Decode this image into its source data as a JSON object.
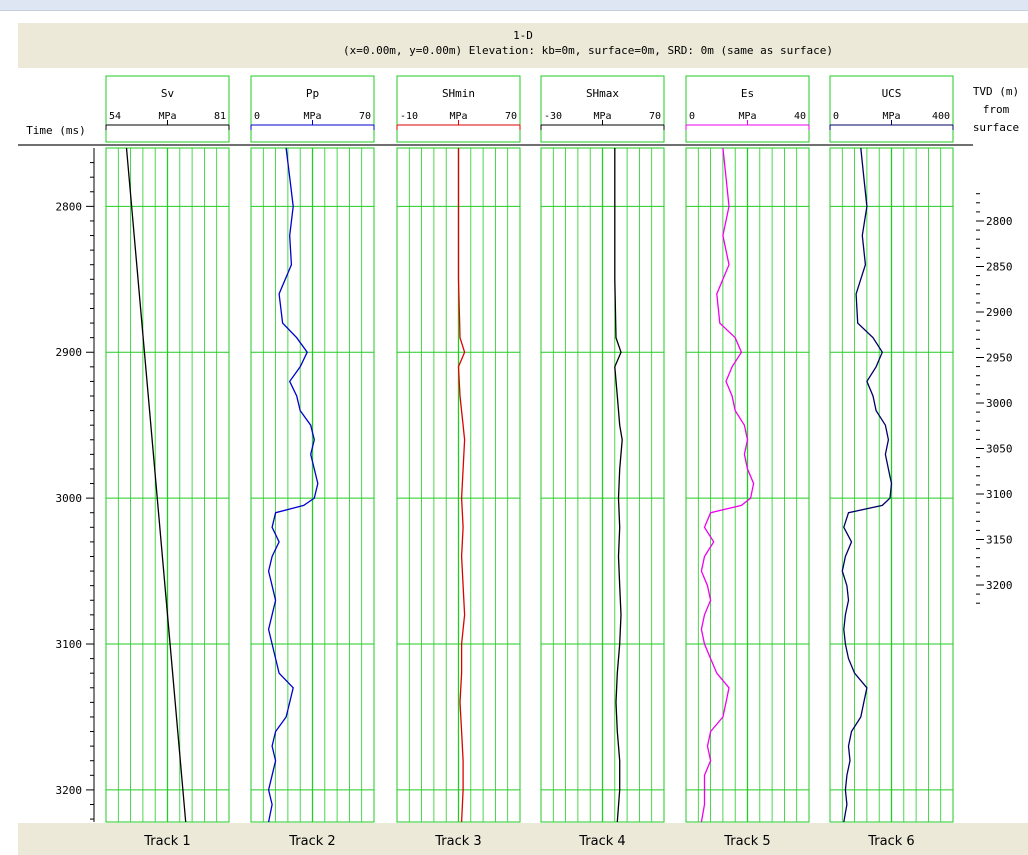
{
  "window": {
    "title_line1": "1-D",
    "title_line2": "(x=0.00m, y=0.00m) Elevation: kb=0m, surface=0m, SRD: 0m (same as surface)"
  },
  "chart_data": {
    "type": "line",
    "y_axis_left": {
      "label": "Time (ms)",
      "ticks": [
        2800,
        2900,
        3000,
        3100,
        3200
      ],
      "range": [
        2760,
        3222
      ]
    },
    "y_axis_right": {
      "label_lines": [
        "TVD (m)",
        "from",
        "surface"
      ],
      "ticks": [
        2800,
        2850,
        2900,
        2950,
        3000,
        3050,
        3100,
        3150,
        3200
      ]
    },
    "tracks": [
      {
        "footer": "Track 1",
        "curve": "Sv",
        "unit": "MPa",
        "min_label": "54",
        "max_label": "81",
        "range": [
          54,
          81
        ],
        "color": "#000000",
        "points": [
          [
            2760,
            58.5
          ],
          [
            3222,
            71.5
          ]
        ]
      },
      {
        "footer": "Track 2",
        "curve": "Pp",
        "unit": "MPa",
        "min_label": "0",
        "max_label": "70",
        "range": [
          0,
          70
        ],
        "color": "#0000cc",
        "points": [
          [
            2760,
            20
          ],
          [
            2780,
            22
          ],
          [
            2800,
            24
          ],
          [
            2820,
            22
          ],
          [
            2840,
            23
          ],
          [
            2860,
            16
          ],
          [
            2880,
            18
          ],
          [
            2890,
            26
          ],
          [
            2900,
            32
          ],
          [
            2910,
            28
          ],
          [
            2920,
            22
          ],
          [
            2930,
            26
          ],
          [
            2940,
            28
          ],
          [
            2950,
            34
          ],
          [
            2960,
            36
          ],
          [
            2970,
            34
          ],
          [
            2980,
            36
          ],
          [
            2990,
            38
          ],
          [
            3000,
            36
          ],
          [
            3005,
            30
          ],
          [
            3010,
            14
          ],
          [
            3020,
            12
          ],
          [
            3030,
            16
          ],
          [
            3040,
            12
          ],
          [
            3050,
            10
          ],
          [
            3060,
            12
          ],
          [
            3070,
            14
          ],
          [
            3080,
            12
          ],
          [
            3090,
            10
          ],
          [
            3100,
            12
          ],
          [
            3110,
            14
          ],
          [
            3120,
            16
          ],
          [
            3130,
            24
          ],
          [
            3140,
            22
          ],
          [
            3150,
            20
          ],
          [
            3160,
            14
          ],
          [
            3170,
            12
          ],
          [
            3180,
            14
          ],
          [
            3190,
            12
          ],
          [
            3200,
            10
          ],
          [
            3210,
            12
          ],
          [
            3222,
            10
          ]
        ]
      },
      {
        "footer": "Track 3",
        "curve": "SHmin",
        "unit": "MPa",
        "min_label": "-10",
        "max_label": "70",
        "range": [
          -10,
          70
        ],
        "color": "#dd0000",
        "points": [
          [
            2760,
            30
          ],
          [
            2800,
            30
          ],
          [
            2850,
            30
          ],
          [
            2890,
            31
          ],
          [
            2900,
            34
          ],
          [
            2910,
            30
          ],
          [
            2930,
            31
          ],
          [
            2950,
            33
          ],
          [
            2960,
            34
          ],
          [
            2980,
            33
          ],
          [
            3000,
            32
          ],
          [
            3020,
            33
          ],
          [
            3040,
            32
          ],
          [
            3060,
            33
          ],
          [
            3080,
            34
          ],
          [
            3100,
            32
          ],
          [
            3120,
            32
          ],
          [
            3140,
            31
          ],
          [
            3160,
            32
          ],
          [
            3180,
            33
          ],
          [
            3200,
            33
          ],
          [
            3222,
            32
          ]
        ]
      },
      {
        "footer": "Track 4",
        "curve": "SHmax",
        "unit": "MPa",
        "min_label": "-30",
        "max_label": "70",
        "range": [
          -30,
          70
        ],
        "color": "#000000",
        "points": [
          [
            2760,
            30
          ],
          [
            2800,
            30
          ],
          [
            2850,
            30
          ],
          [
            2890,
            31
          ],
          [
            2900,
            35
          ],
          [
            2910,
            30
          ],
          [
            2930,
            32
          ],
          [
            2950,
            34
          ],
          [
            2960,
            36
          ],
          [
            2980,
            34
          ],
          [
            3000,
            33
          ],
          [
            3020,
            34
          ],
          [
            3040,
            33
          ],
          [
            3060,
            34
          ],
          [
            3080,
            35
          ],
          [
            3100,
            34
          ],
          [
            3120,
            32
          ],
          [
            3140,
            31
          ],
          [
            3160,
            32
          ],
          [
            3180,
            34
          ],
          [
            3200,
            34
          ],
          [
            3222,
            32
          ]
        ]
      },
      {
        "footer": "Track 5",
        "curve": "Es",
        "unit": "MPa",
        "min_label": "0",
        "max_label": "40",
        "range": [
          0,
          40
        ],
        "color": "#ee00ee",
        "points": [
          [
            2760,
            12
          ],
          [
            2780,
            13
          ],
          [
            2800,
            14
          ],
          [
            2820,
            12
          ],
          [
            2840,
            14
          ],
          [
            2860,
            10
          ],
          [
            2880,
            11
          ],
          [
            2890,
            16
          ],
          [
            2900,
            18
          ],
          [
            2910,
            15
          ],
          [
            2920,
            13
          ],
          [
            2930,
            15
          ],
          [
            2940,
            16
          ],
          [
            2950,
            19
          ],
          [
            2960,
            20
          ],
          [
            2970,
            19
          ],
          [
            2980,
            20
          ],
          [
            2990,
            22
          ],
          [
            3000,
            21
          ],
          [
            3005,
            18
          ],
          [
            3010,
            8
          ],
          [
            3020,
            6
          ],
          [
            3030,
            9
          ],
          [
            3040,
            6
          ],
          [
            3050,
            5
          ],
          [
            3060,
            7
          ],
          [
            3070,
            8
          ],
          [
            3080,
            6
          ],
          [
            3090,
            5
          ],
          [
            3100,
            6
          ],
          [
            3110,
            8
          ],
          [
            3120,
            10
          ],
          [
            3130,
            14
          ],
          [
            3140,
            13
          ],
          [
            3150,
            12
          ],
          [
            3160,
            8
          ],
          [
            3170,
            7
          ],
          [
            3180,
            8
          ],
          [
            3190,
            6
          ],
          [
            3200,
            6
          ],
          [
            3210,
            6
          ],
          [
            3222,
            5
          ]
        ]
      },
      {
        "footer": "Track 6",
        "curve": "UCS",
        "unit": "MPa",
        "min_label": "0",
        "max_label": "400",
        "range": [
          0,
          400
        ],
        "color": "#000066",
        "points": [
          [
            2760,
            100
          ],
          [
            2780,
            110
          ],
          [
            2800,
            120
          ],
          [
            2820,
            105
          ],
          [
            2840,
            115
          ],
          [
            2860,
            85
          ],
          [
            2880,
            90
          ],
          [
            2890,
            140
          ],
          [
            2900,
            170
          ],
          [
            2910,
            150
          ],
          [
            2920,
            120
          ],
          [
            2930,
            140
          ],
          [
            2940,
            150
          ],
          [
            2950,
            180
          ],
          [
            2960,
            190
          ],
          [
            2970,
            180
          ],
          [
            2980,
            190
          ],
          [
            2990,
            200
          ],
          [
            3000,
            195
          ],
          [
            3005,
            170
          ],
          [
            3010,
            60
          ],
          [
            3020,
            45
          ],
          [
            3030,
            70
          ],
          [
            3040,
            50
          ],
          [
            3050,
            40
          ],
          [
            3060,
            55
          ],
          [
            3070,
            60
          ],
          [
            3080,
            50
          ],
          [
            3090,
            45
          ],
          [
            3100,
            50
          ],
          [
            3110,
            60
          ],
          [
            3120,
            80
          ],
          [
            3130,
            120
          ],
          [
            3140,
            110
          ],
          [
            3150,
            100
          ],
          [
            3160,
            70
          ],
          [
            3170,
            60
          ],
          [
            3180,
            65
          ],
          [
            3190,
            55
          ],
          [
            3200,
            50
          ],
          [
            3210,
            55
          ],
          [
            3222,
            45
          ]
        ]
      }
    ]
  }
}
